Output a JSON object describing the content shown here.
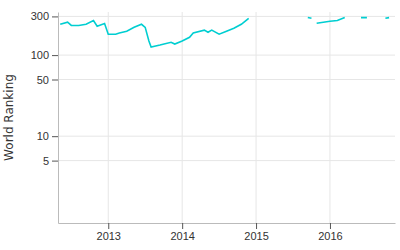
{
  "chart_data": {
    "type": "line",
    "y_label": "World Ranking",
    "x": [
      2012.35,
      2012.45,
      2012.5,
      2012.6,
      2012.7,
      2012.8,
      2012.85,
      2012.95,
      2013.0,
      2013.1,
      2013.15,
      2013.25,
      2013.35,
      2013.45,
      2013.5,
      2013.55,
      2013.58,
      2013.7,
      2013.85,
      2013.9,
      2014.0,
      2014.1,
      2014.15,
      2014.3,
      2014.35,
      2014.4,
      2014.5,
      2014.6,
      2014.7,
      2014.8,
      2014.85,
      2014.9,
      2014.95,
      2015.7,
      2015.75,
      2015.8,
      2015.82,
      2016.0,
      2016.1,
      2016.2,
      2016.3,
      2016.42,
      2016.5,
      2016.55,
      2016.75,
      2016.8
    ],
    "values": [
      240,
      255,
      232,
      232,
      240,
      267,
      227,
      245,
      181,
      181,
      187,
      197,
      220,
      240,
      220,
      149,
      126,
      133,
      144,
      137,
      149,
      166,
      187,
      203,
      191,
      203,
      181,
      197,
      214,
      240,
      261,
      284,
      null,
      291,
      284,
      null,
      247,
      261,
      267,
      290,
      null,
      290,
      290,
      null,
      284,
      290
    ],
    "color": "#00ced1",
    "log": "y",
    "grid": true,
    "xlim": [
      2012.32,
      2016.88
    ],
    "xticks": [
      2013,
      2014,
      2015,
      2016
    ],
    "ylim": [
      0.85,
      340
    ],
    "yticks": [
      5,
      10,
      50,
      100,
      300
    ]
  }
}
